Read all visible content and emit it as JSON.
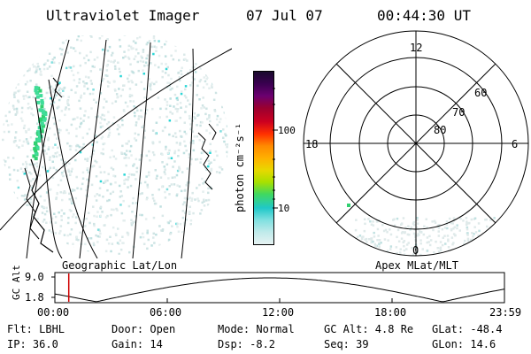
{
  "header": {
    "instrument": "Ultraviolet Imager",
    "date": "07 Jul 07",
    "time": "00:44:30 UT"
  },
  "colorbar": {
    "unit_label": "photon cm⁻²s⁻¹",
    "ticks": [
      "100",
      "10"
    ],
    "colors": [
      "#1a0a2e",
      "#3a0050",
      "#6b0070",
      "#9a0030",
      "#cc0020",
      "#ff3000",
      "#ff8a00",
      "#ffb000",
      "#e8d800",
      "#a8e000",
      "#40d860",
      "#20c8c8",
      "#80e0e0",
      "#c0eaea",
      "#e6f2f2"
    ]
  },
  "geo_panel": {
    "label": "Geographic Lat/Lon"
  },
  "polar_panel": {
    "label": "Apex MLat/MLT",
    "mlt_labels": {
      "top": "12",
      "left": "18",
      "right": "6",
      "bottom": "0"
    },
    "lat_labels": [
      "60",
      "70",
      "80"
    ]
  },
  "alt_plot": {
    "ylabel": "GC Alt",
    "yticks": [
      "9.0",
      "1.8"
    ],
    "xticks": [
      "00:00",
      "06:00",
      "12:00",
      "18:00",
      "23:59"
    ],
    "marker_hour": 0.74
  },
  "footer": {
    "filter": "Flt: LBHL",
    "ip": "IP: 36.0",
    "door": "Door: Open",
    "gain": "Gain: 14",
    "mode": "Mode: Normal",
    "dsp": "Dsp:   -8.2",
    "gcalt": "GC Alt: 4.8 Re",
    "seq": "Seq: 39",
    "glat": "GLat: -48.4",
    "glon": "GLon:  14.6"
  }
}
